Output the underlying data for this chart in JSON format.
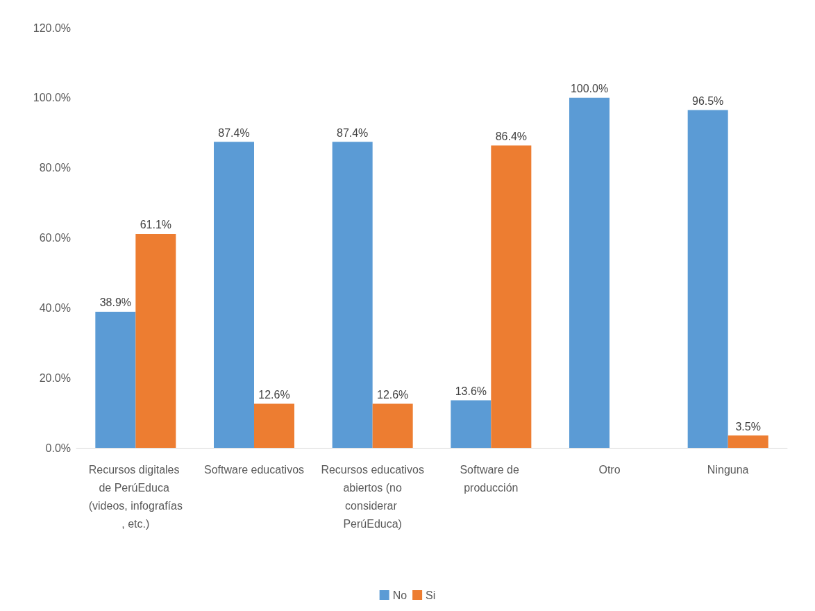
{
  "chart_data": {
    "type": "bar",
    "categories": [
      "Recursos digitales de PerúEduca (videos, infografías, etc.)",
      "Software educativos",
      "Recursos educativos abiertos (no considerar PerúEduca)",
      "Software de producción",
      "Otro",
      "Ninguna"
    ],
    "series": [
      {
        "name": "No",
        "color": "#5b9bd5",
        "values": [
          38.9,
          87.4,
          87.4,
          13.6,
          100.0,
          96.5
        ],
        "value_labels": [
          "38.9%",
          "87.4%",
          "87.4%",
          "13.6%",
          "100.0%",
          "96.5%"
        ]
      },
      {
        "name": "Si",
        "color": "#ed7d31",
        "values": [
          61.1,
          12.6,
          12.6,
          86.4,
          null,
          3.5
        ],
        "value_labels": [
          "61.1%",
          "12.6%",
          "12.6%",
          "86.4%",
          null,
          "3.5%"
        ]
      }
    ],
    "ylim": [
      0,
      120
    ],
    "yticks": [
      {
        "value": 0,
        "label": "0.0%"
      },
      {
        "value": 20,
        "label": "20.0%"
      },
      {
        "value": 40,
        "label": "40.0%"
      },
      {
        "value": 60,
        "label": "60.0%"
      },
      {
        "value": 80,
        "label": "80.0%"
      },
      {
        "value": 100,
        "label": "100.0%"
      },
      {
        "value": 120,
        "label": "120.0%"
      }
    ],
    "legend": "bottom"
  }
}
